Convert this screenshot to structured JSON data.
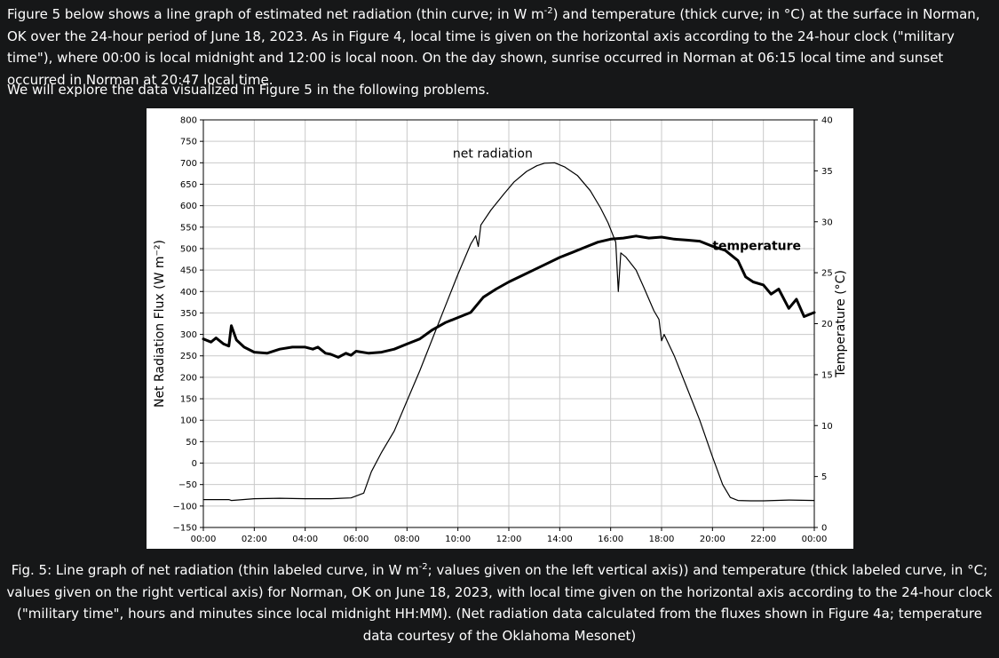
{
  "intro": {
    "p1_a": "Figure 5 below shows a line graph of estimated net radiation (thin curve; in W m",
    "p1_sup": "-2",
    "p1_b": ") and temperature (thick curve; in °C) at the surface in Norman, OK over the 24-hour period of June 18, 2023. As in Figure 4, local time is given on the horizontal axis according to the 24-hour clock (\"military time\"), where 00:00 is local midnight and 12:00 is local noon. On the day shown, sunrise occurred in Norman at 06:15 local time and sunset occurred in Norman at 20:47 local time.",
    "p2": "We will explore the data visualized in Figure 5 in the following problems."
  },
  "caption": {
    "a": "Fig. 5: Line graph of net radiation (thin labeled curve, in W m",
    "sup": "-2",
    "b": "; values given on the left vertical axis)) and temperature (thick labeled curve, in °C; values given on the right vertical axis) for Norman, OK on June 18, 2023, with local time given on the horizontal axis according to the 24-hour clock (\"military time\", hours and minutes since local midnight HH:MM). (Net radiation data calculated from the fluxes shown in Figure 4a; temperature data courtesy of the Oklahoma Mesonet)"
  },
  "chart_data": {
    "type": "line",
    "title": "",
    "xlabel": "",
    "ylabel_left": "Net Radiation Flux (W m⁻²)",
    "ylabel_right": "Temperature (°C)",
    "xlim": [
      0,
      24
    ],
    "ylim_left": [
      -150,
      800
    ],
    "ylim_right": [
      0,
      40
    ],
    "x_ticks": [
      0,
      2,
      4,
      6,
      8,
      10,
      12,
      14,
      16,
      18,
      20,
      22,
      24
    ],
    "x_tick_labels": [
      "00:00",
      "02:00",
      "04:00",
      "06:00",
      "08:00",
      "10:00",
      "12:00",
      "14:00",
      "16:00",
      "18:00",
      "20:00",
      "22:00",
      "00:00"
    ],
    "y_left_ticks": [
      -150,
      -100,
      -50,
      0,
      50,
      100,
      150,
      200,
      250,
      300,
      350,
      400,
      450,
      500,
      550,
      600,
      650,
      700,
      750,
      800
    ],
    "y_left_tick_labels": [
      "−150",
      "−100",
      "−50",
      "0",
      "50",
      "100",
      "150",
      "200",
      "250",
      "300",
      "350",
      "400",
      "450",
      "500",
      "550",
      "600",
      "650",
      "700",
      "750",
      "800"
    ],
    "y_right_ticks": [
      0,
      5,
      10,
      15,
      20,
      25,
      30,
      35,
      40
    ],
    "y_right_tick_labels": [
      "0",
      "5",
      "10",
      "15",
      "20",
      "25",
      "30",
      "35",
      "40"
    ],
    "grid": true,
    "series": [
      {
        "name": "net radiation",
        "axis": "left",
        "style": "thin",
        "x": [
          0,
          1,
          1.1,
          2,
          3,
          4,
          5,
          5.8,
          6.3,
          6.6,
          7,
          7.5,
          8,
          8.5,
          9,
          9.5,
          10,
          10.5,
          10.7,
          10.8,
          10.9,
          11.3,
          11.8,
          12.2,
          12.7,
          13.1,
          13.4,
          13.8,
          14.2,
          14.7,
          15.2,
          15.6,
          15.9,
          16.2,
          16.3,
          16.4,
          16.6,
          17,
          17.3,
          17.7,
          17.9,
          18,
          18.1,
          18.5,
          19,
          19.5,
          20,
          20.4,
          20.7,
          21,
          21.5,
          22,
          23,
          24
        ],
        "values": [
          -85,
          -85,
          -87,
          -83,
          -82,
          -83,
          -83,
          -81,
          -70,
          -20,
          25,
          75,
          145,
          215,
          290,
          365,
          440,
          510,
          530,
          505,
          555,
          590,
          627,
          655,
          680,
          693,
          699,
          700,
          690,
          670,
          635,
          595,
          560,
          515,
          400,
          490,
          480,
          450,
          410,
          355,
          335,
          285,
          300,
          250,
          175,
          100,
          15,
          -50,
          -80,
          -87,
          -88,
          -88,
          -86,
          -87
        ]
      },
      {
        "name": "temperature",
        "axis": "right",
        "style": "thick",
        "x": [
          0,
          0.3,
          0.5,
          0.8,
          1.0,
          1.1,
          1.3,
          1.6,
          2.0,
          2.5,
          3.0,
          3.5,
          4.0,
          4.3,
          4.5,
          4.8,
          5.0,
          5.3,
          5.6,
          5.8,
          6.0,
          6.5,
          7.0,
          7.5,
          8.0,
          8.5,
          9.0,
          9.5,
          10.0,
          10.5,
          11.0,
          11.5,
          12.0,
          12.5,
          13.0,
          13.5,
          14.0,
          14.5,
          15.0,
          15.5,
          16.0,
          16.5,
          17.0,
          17.5,
          18.0,
          18.5,
          19.0,
          19.5,
          20.0,
          20.5,
          21.0,
          21.3,
          21.6,
          22.0,
          22.3,
          22.6,
          23.0,
          23.3,
          23.6,
          24.0
        ],
        "values": [
          18.5,
          18.2,
          18.6,
          18.0,
          17.8,
          19.8,
          18.4,
          17.7,
          17.2,
          17.1,
          17.5,
          17.7,
          17.7,
          17.5,
          17.7,
          17.1,
          17.0,
          16.7,
          17.1,
          16.9,
          17.3,
          17.1,
          17.2,
          17.5,
          18.0,
          18.5,
          19.4,
          20.1,
          20.6,
          21.1,
          22.6,
          23.4,
          24.1,
          24.7,
          25.3,
          25.9,
          26.5,
          27.0,
          27.5,
          28.0,
          28.3,
          28.4,
          28.6,
          28.4,
          28.5,
          28.3,
          28.2,
          28.1,
          27.6,
          27.2,
          26.2,
          24.6,
          24.1,
          23.8,
          22.9,
          23.4,
          21.5,
          22.4,
          20.7,
          21.1
        ]
      }
    ],
    "annotations": [
      {
        "text": "net radiation",
        "x": 9.8,
        "y_left": 712
      },
      {
        "text": "temperature",
        "x": 20.0,
        "y_left": 497
      }
    ]
  }
}
